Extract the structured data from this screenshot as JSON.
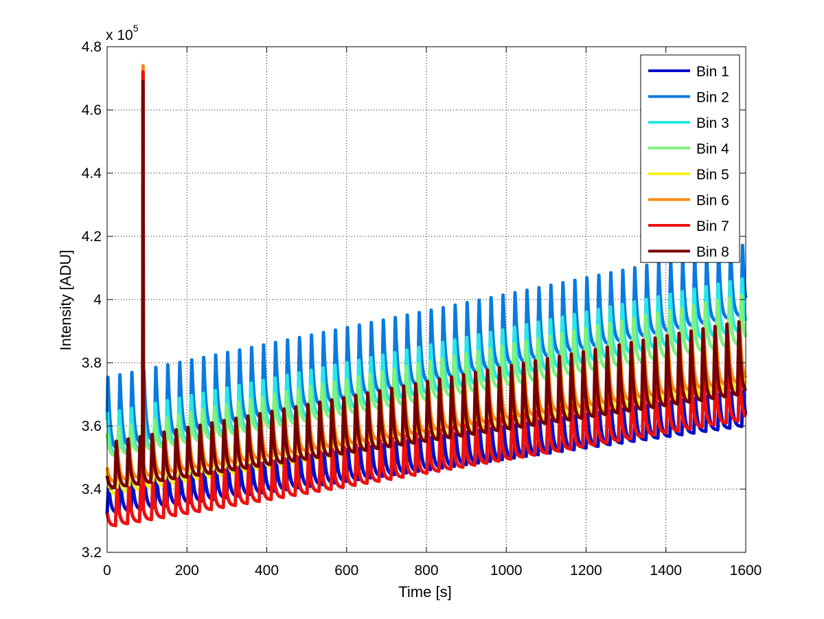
{
  "chart_data": {
    "type": "line",
    "title": "",
    "xlabel": "Time [s]",
    "ylabel": "Intensity [ADU]",
    "y_multiplier_label": "x 10",
    "y_multiplier_exponent": "5",
    "y_multiplier": 100000,
    "xlim": [
      0,
      1600
    ],
    "ylim": [
      3.2,
      4.8
    ],
    "xticks": [
      0,
      200,
      400,
      600,
      800,
      1000,
      1200,
      1400,
      1600
    ],
    "xtick_labels": [
      "0",
      "200",
      "400",
      "600",
      "800",
      "1000",
      "1200",
      "1400",
      "1600"
    ],
    "yticks": [
      3.2,
      3.4,
      3.6,
      3.8,
      4.0,
      4.2,
      4.4,
      4.6,
      4.8
    ],
    "ytick_labels": [
      "3.2",
      "3.4",
      "3.6",
      "3.8",
      "4",
      "4.2",
      "4.4",
      "4.6",
      "4.8"
    ],
    "grid": true,
    "legend_position": "top-right",
    "oscillation_period_s": 30,
    "spike": {
      "x": 90,
      "series": [
        "Bin 6",
        "Bin 7",
        "Bin 8"
      ],
      "peaks": [
        4.74,
        4.72,
        4.69
      ]
    },
    "series": [
      {
        "name": "Bin 1",
        "color": "#0010c8",
        "low": [
          3.32,
          3.6
        ],
        "high": [
          3.42,
          3.72
        ]
      },
      {
        "name": "Bin 2",
        "color": "#0a7ae0",
        "low": [
          3.52,
          3.95
        ],
        "high": [
          3.76,
          4.18
        ]
      },
      {
        "name": "Bin 3",
        "color": "#26e8e8",
        "low": [
          3.5,
          3.9
        ],
        "high": [
          3.65,
          4.08
        ]
      },
      {
        "name": "Bin 4",
        "color": "#80f080",
        "low": [
          3.5,
          3.86
        ],
        "high": [
          3.59,
          4.02
        ]
      },
      {
        "name": "Bin 5",
        "color": "#f8f020",
        "low": [
          3.38,
          3.72
        ],
        "high": [
          3.5,
          3.86
        ]
      },
      {
        "name": "Bin 6",
        "color": "#f88a10",
        "low": [
          3.42,
          3.74
        ],
        "high": [
          3.52,
          3.9
        ]
      },
      {
        "name": "Bin 7",
        "color": "#ee1010",
        "low": [
          3.28,
          3.62
        ],
        "high": [
          3.4,
          3.78
        ]
      },
      {
        "name": "Bin 8",
        "color": "#780000",
        "low": [
          3.4,
          3.7
        ],
        "high": [
          3.55,
          3.94
        ]
      }
    ]
  }
}
